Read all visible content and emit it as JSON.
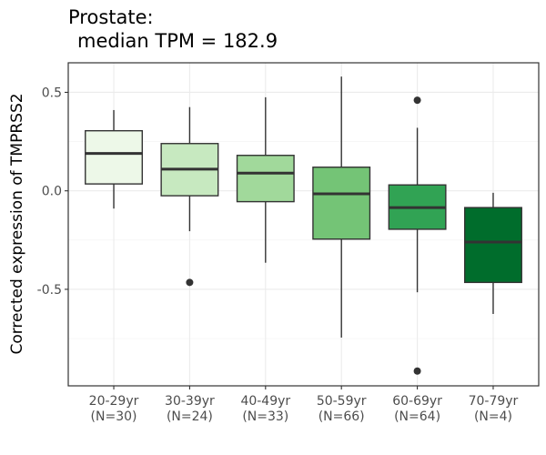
{
  "chart_data": {
    "type": "box",
    "title_line1": "Prostate:",
    "title_line2": "median TPM = 182.9",
    "ylabel": "Corrected expression of TMPRSS2",
    "ylim": [
      -0.99,
      0.65
    ],
    "yticks": [
      0.5,
      0.0,
      -0.5
    ],
    "ytick_labels": [
      "0.5",
      "0.0",
      "-0.5"
    ],
    "grid": true,
    "categories": [
      {
        "label": "20-29yr",
        "n": "(N=30)",
        "color": "#edf8e8"
      },
      {
        "label": "30-39yr",
        "n": "(N=24)",
        "color": "#c7e9c0"
      },
      {
        "label": "40-49yr",
        "n": "(N=33)",
        "color": "#a1d99b"
      },
      {
        "label": "50-59yr",
        "n": "(N=66)",
        "color": "#74c476"
      },
      {
        "label": "60-69yr",
        "n": "(N=64)",
        "color": "#31a354"
      },
      {
        "label": "70-79yr",
        "n": "(N=4)",
        "color": "#006d2c"
      }
    ],
    "boxes": [
      {
        "whisker_low": -0.09,
        "q1": 0.035,
        "median": 0.19,
        "q3": 0.305,
        "whisker_high": 0.41,
        "outliers": []
      },
      {
        "whisker_low": -0.205,
        "q1": -0.025,
        "median": 0.11,
        "q3": 0.24,
        "whisker_high": 0.425,
        "outliers": [
          -0.465
        ]
      },
      {
        "whisker_low": -0.365,
        "q1": -0.055,
        "median": 0.09,
        "q3": 0.18,
        "whisker_high": 0.475,
        "outliers": []
      },
      {
        "whisker_low": -0.745,
        "q1": -0.245,
        "median": -0.015,
        "q3": 0.12,
        "whisker_high": 0.58,
        "outliers": []
      },
      {
        "whisker_low": -0.515,
        "q1": -0.195,
        "median": -0.085,
        "q3": 0.03,
        "whisker_high": 0.32,
        "outliers": [
          0.46,
          -0.915
        ]
      },
      {
        "whisker_low": -0.625,
        "q1": -0.465,
        "median": -0.26,
        "q3": -0.085,
        "whisker_high": -0.01,
        "outliers": []
      }
    ]
  }
}
